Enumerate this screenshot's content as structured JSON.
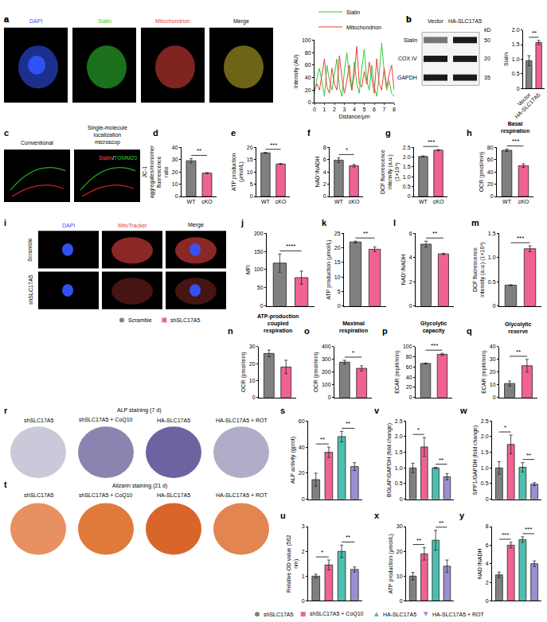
{
  "chart_data": [
    {
      "panel": "a",
      "type": "line",
      "xlabel": "Distance/μm",
      "ylabel": "Intensity (AU)",
      "xlim": [
        0,
        8
      ],
      "xticks": [
        0,
        1,
        2,
        3,
        4,
        5,
        6,
        7,
        8
      ],
      "ylim": [
        0,
        100
      ],
      "yticks": [
        0,
        20,
        40,
        60,
        80,
        100
      ],
      "legend": "top",
      "x": [
        0,
        0.25,
        0.5,
        0.75,
        1,
        1.25,
        1.5,
        1.75,
        2,
        2.25,
        2.5,
        2.75,
        3,
        3.25,
        3.5,
        3.75,
        4,
        4.25,
        4.5,
        4.75,
        5,
        5.25,
        5.5,
        5.75,
        6,
        6.25,
        6.5,
        6.75,
        7,
        7.25,
        7.5,
        7.75,
        8
      ],
      "series": [
        {
          "name": "Sialin",
          "color": "#33cc33",
          "values": [
            15,
            40,
            55,
            30,
            10,
            60,
            35,
            20,
            45,
            70,
            25,
            10,
            50,
            80,
            40,
            20,
            65,
            30,
            15,
            55,
            85,
            35,
            20,
            60,
            25,
            10,
            45,
            95,
            50,
            20,
            35,
            15,
            10
          ]
        },
        {
          "name": "Mitochondrion",
          "color": "#e8413c",
          "values": [
            20,
            30,
            20,
            45,
            70,
            25,
            15,
            55,
            30,
            20,
            75,
            40,
            15,
            35,
            60,
            20,
            45,
            90,
            30,
            25,
            50,
            30,
            65,
            40,
            15,
            70,
            30,
            20,
            55,
            25,
            45,
            60,
            20
          ]
        }
      ]
    },
    {
      "panel": "b",
      "type": "bar",
      "categories": [
        "Vector",
        "HA-SLC17A5"
      ],
      "values": [
        0.95,
        1.57
      ],
      "errors": [
        0.17,
        0.07
      ],
      "colors": [
        "#808080",
        "#f06292"
      ],
      "ylabel": "Sialin",
      "ylim": [
        0,
        2
      ],
      "yticks": [
        0,
        0.5,
        {
          "value": 1,
          "label": "1.0"
        },
        1.5,
        {
          "value": 2,
          "label": "2.0"
        }
      ],
      "annotations": [
        {
          "text": "**",
          "between": [
            0,
            1
          ]
        }
      ]
    },
    {
      "panel": "d",
      "type": "bar",
      "categories": [
        "WT",
        "cKO"
      ],
      "values": [
        29,
        19
      ],
      "errors": [
        1.8,
        0.4
      ],
      "colors": [
        "#808080",
        "#f06292"
      ],
      "ylabel": "JC-1 aggregates/monomer fluorescence ratio",
      "ylim": [
        0,
        40
      ],
      "yticks": [
        0,
        10,
        20,
        30,
        40
      ],
      "annotations": [
        {
          "text": "**",
          "between": [
            0,
            1
          ]
        }
      ]
    },
    {
      "panel": "e",
      "type": "bar",
      "categories": [
        "WT",
        "cKO"
      ],
      "values": [
        17.7,
        13.2
      ],
      "errors": [
        0.2,
        0.2
      ],
      "colors": [
        "#808080",
        "#f06292"
      ],
      "ylabel": "ATP production (μmol/L)",
      "ylim": [
        0,
        20
      ],
      "yticks": [
        0,
        5,
        10,
        15,
        20
      ],
      "annotations": [
        {
          "text": "***",
          "between": [
            0,
            1
          ]
        }
      ]
    },
    {
      "panel": "f",
      "type": "bar",
      "categories": [
        "WT",
        "cKO"
      ],
      "values": [
        5.9,
        5.0
      ],
      "errors": [
        0.4,
        0.2
      ],
      "colors": [
        "#808080",
        "#f06292"
      ],
      "ylabel": "NAD⁺/NADH",
      "ylim": [
        0,
        8
      ],
      "yticks": [
        0,
        2,
        4,
        6,
        8
      ],
      "annotations": [
        {
          "text": "*",
          "between": [
            0,
            1
          ]
        }
      ]
    },
    {
      "panel": "g",
      "type": "bar",
      "categories": [
        "WT",
        "cKO"
      ],
      "values": [
        2.03,
        2.35
      ],
      "errors": [
        0.03,
        0.03
      ],
      "colors": [
        "#808080",
        "#f06292"
      ],
      "ylabel": "DCF fluorescence intensity (a.u.) (1×10⁴)",
      "ylim": [
        0,
        2.5
      ],
      "yticks": [
        0,
        0.5,
        {
          "value": 1,
          "label": "1.0"
        },
        1.5,
        {
          "value": 2,
          "label": "2.0"
        },
        2.5
      ],
      "annotations": [
        {
          "text": "***",
          "between": [
            0,
            1
          ]
        }
      ]
    },
    {
      "panel": "h",
      "type": "bar",
      "title": "Basal respiration",
      "categories": [
        "WT",
        "cKO"
      ],
      "values": [
        75,
        50
      ],
      "errors": [
        2,
        3
      ],
      "colors": [
        "#808080",
        "#f06292"
      ],
      "ylabel": "OCR (pmol/min)",
      "ylim": [
        0,
        80
      ],
      "yticks": [
        0,
        20,
        40,
        60,
        80
      ],
      "annotations": [
        {
          "text": "***",
          "between": [
            0,
            1
          ]
        }
      ]
    },
    {
      "panel": "j",
      "type": "bar",
      "tick_labels": "y",
      "categories": [
        "Scramble",
        "shSLC17A5"
      ],
      "values": [
        118,
        78
      ],
      "errors": [
        25,
        18
      ],
      "colors": [
        "#808080",
        "#f06292"
      ],
      "ylabel": "MFI",
      "ylim": [
        0,
        200
      ],
      "yticks": [
        0,
        50,
        100,
        150,
        200
      ],
      "annotations": [
        {
          "text": "****",
          "between": [
            0,
            1
          ]
        }
      ]
    },
    {
      "panel": "k",
      "type": "bar",
      "tick_labels": "y",
      "categories": [
        "Scramble",
        "shSLC17A5"
      ],
      "values": [
        22,
        19.5
      ],
      "errors": [
        0.3,
        0.8
      ],
      "colors": [
        "#808080",
        "#f06292"
      ],
      "ylabel": "ATP production (μmol/L)",
      "ylim": [
        0,
        25
      ],
      "yticks": [
        0,
        5,
        10,
        15,
        20,
        25
      ],
      "annotations": [
        {
          "text": "**",
          "between": [
            0,
            1
          ]
        }
      ]
    },
    {
      "panel": "l",
      "type": "bar",
      "tick_labels": "y",
      "categories": [
        "Scramble",
        "shSLC17A5"
      ],
      "values": [
        5.1,
        4.3
      ],
      "errors": [
        0.25,
        0.05
      ],
      "colors": [
        "#808080",
        "#f06292"
      ],
      "ylabel": "NAD⁺/NADH",
      "ylim": [
        0,
        6
      ],
      "yticks": [
        0,
        2,
        4,
        6
      ],
      "annotations": [
        {
          "text": "**",
          "between": [
            0,
            1
          ]
        }
      ]
    },
    {
      "panel": "m",
      "type": "bar",
      "tick_labels": "y",
      "categories": [
        "Scramble",
        "shSLC17A5"
      ],
      "values": [
        0.43,
        1.18
      ],
      "errors": [
        0.01,
        0.06
      ],
      "colors": [
        "#808080",
        "#f06292"
      ],
      "ylabel": "DCF fluorescence intensity (a.u.) (1×10⁴)",
      "ylim": [
        0,
        1.5
      ],
      "yticks": [
        0,
        0.5,
        {
          "value": 1,
          "label": "1.0"
        },
        1.5
      ],
      "annotations": [
        {
          "text": "***",
          "between": [
            0,
            1
          ]
        }
      ]
    },
    {
      "panel": "n",
      "type": "bar",
      "tick_labels": "y",
      "title": "ATP-production coupled respiration",
      "categories": [
        "Scramble",
        "shSLC17A5"
      ],
      "values": [
        26,
        18
      ],
      "errors": [
        2,
        4
      ],
      "colors": [
        "#808080",
        "#f06292"
      ],
      "ylabel": "OCR (pmol/min)",
      "ylim": [
        0,
        30
      ],
      "yticks": [
        0,
        10,
        20,
        30
      ]
    },
    {
      "panel": "o",
      "type": "bar",
      "tick_labels": "y",
      "title": "Maximal respiration",
      "categories": [
        "Scramble",
        "shSLC17A5"
      ],
      "values": [
        278,
        230
      ],
      "errors": [
        15,
        20
      ],
      "colors": [
        "#808080",
        "#f06292"
      ],
      "ylabel": "OCR (pmol/min)",
      "ylim": [
        0,
        400
      ],
      "yticks": [
        0,
        100,
        200,
        300,
        400
      ],
      "annotations": [
        {
          "text": "*",
          "between": [
            0,
            1
          ]
        }
      ]
    },
    {
      "panel": "p",
      "type": "bar",
      "tick_labels": "y",
      "title": "Glycolytic capacity",
      "categories": [
        "Scramble",
        "shSLC17A5"
      ],
      "values": [
        67,
        85
      ],
      "errors": [
        1,
        2
      ],
      "colors": [
        "#808080",
        "#f06292"
      ],
      "ylabel": "ECAR (mpH/min)",
      "ylim": [
        0,
        100
      ],
      "yticks": [
        0,
        20,
        40,
        60,
        80,
        100
      ],
      "annotations": [
        {
          "text": "***",
          "between": [
            0,
            1
          ]
        }
      ]
    },
    {
      "panel": "q",
      "type": "bar",
      "tick_labels": "y",
      "title": "Glycolytic reserve",
      "categories": [
        "Scramble",
        "shSLC17A5"
      ],
      "values": [
        11,
        25
      ],
      "errors": [
        2,
        5
      ],
      "colors": [
        "#808080",
        "#f06292"
      ],
      "ylabel": "ECAR (mpH/min)",
      "ylim": [
        0,
        40
      ],
      "yticks": [
        0,
        10,
        20,
        30,
        40
      ],
      "annotations": [
        {
          "text": "**",
          "between": [
            0,
            1
          ]
        }
      ]
    },
    {
      "panel": "s",
      "type": "bar",
      "tick_labels": "y",
      "categories": [
        "shSLC17A5",
        "shSLC17A5 + CoQ10",
        "HA-SLC17A5",
        "HA-SLC17A5 + ROT"
      ],
      "values": [
        15,
        36,
        48,
        25
      ],
      "errors": [
        5,
        4,
        4,
        3
      ],
      "colors": [
        "#808080",
        "#f06292",
        "#4dbfb0",
        "#9b8fd1"
      ],
      "ylabel": "ALP activity (gprot)",
      "ylim": [
        0,
        60
      ],
      "yticks": [
        0,
        20,
        40,
        60
      ],
      "annotations": [
        {
          "text": "**",
          "between": [
            0,
            1
          ]
        },
        {
          "text": "**",
          "between": [
            2,
            3
          ]
        }
      ]
    },
    {
      "panel": "v",
      "type": "bar",
      "tick_labels": "y",
      "categories": [
        "shSLC17A5",
        "shSLC17A5 + CoQ10",
        "HA-SLC17A5",
        "HA-SLC17A5 + ROT"
      ],
      "values": [
        1.0,
        1.67,
        1.0,
        0.72
      ],
      "errors": [
        0.15,
        0.3,
        0.02,
        0.1
      ],
      "colors": [
        "#808080",
        "#f06292",
        "#4dbfb0",
        "#9b8fd1"
      ],
      "ylabel": "BGLAP/GAPDH (fold change)",
      "ylim": [
        0,
        2.5
      ],
      "yticks": [
        0,
        0.5,
        {
          "value": 1,
          "label": "1.0"
        },
        1.5,
        {
          "value": 2,
          "label": "2.0"
        },
        2.5
      ],
      "annotations": [
        {
          "text": "*",
          "between": [
            0,
            1
          ]
        },
        {
          "text": "**",
          "between": [
            2,
            3
          ]
        }
      ]
    },
    {
      "panel": "w",
      "type": "bar",
      "tick_labels": "y",
      "categories": [
        "shSLC17A5",
        "shSLC17A5 + CoQ10",
        "HA-SLC17A5",
        "HA-SLC17A5 + ROT"
      ],
      "values": [
        1.0,
        1.75,
        1.02,
        0.48
      ],
      "errors": [
        0.2,
        0.3,
        0.15,
        0.05
      ],
      "colors": [
        "#808080",
        "#f06292",
        "#4dbfb0",
        "#9b8fd1"
      ],
      "ylabel": "SPP1/GAPDH (fold change)",
      "ylim": [
        0,
        2.5
      ],
      "yticks": [
        0,
        0.5,
        {
          "value": 1,
          "label": "1.0"
        },
        1.5,
        {
          "value": 2,
          "label": "2.0"
        },
        2.5
      ],
      "annotations": [
        {
          "text": "*",
          "between": [
            0,
            1
          ]
        },
        {
          "text": "**",
          "between": [
            2,
            3
          ]
        }
      ]
    },
    {
      "panel": "u",
      "type": "bar",
      "tick_labels": "y",
      "categories": [
        "shSLC17A5",
        "shSLC17A5 + CoQ10",
        "HA-SLC17A5",
        "HA-SLC17A5 + ROT"
      ],
      "values": [
        1.0,
        1.45,
        2.0,
        1.27
      ],
      "errors": [
        0.08,
        0.2,
        0.25,
        0.1
      ],
      "colors": [
        "#808080",
        "#f06292",
        "#4dbfb0",
        "#9b8fd1"
      ],
      "ylabel": "Relative OD value (562 nm)",
      "ylim": [
        0,
        3
      ],
      "yticks": [
        0,
        1,
        2,
        3
      ],
      "annotations": [
        {
          "text": "*",
          "between": [
            0,
            1
          ]
        },
        {
          "text": "**",
          "between": [
            2,
            3
          ]
        }
      ]
    },
    {
      "panel": "x",
      "type": "bar",
      "tick_labels": "y",
      "categories": [
        "shSLC17A5",
        "shSLC17A5 + CoQ10",
        "HA-SLC17A5",
        "HA-SLC17A5 + ROT"
      ],
      "values": [
        10,
        19,
        24.5,
        14
      ],
      "errors": [
        1.5,
        2.5,
        4,
        2.5
      ],
      "colors": [
        "#808080",
        "#f06292",
        "#4dbfb0",
        "#9b8fd1"
      ],
      "ylabel": "ATP production (μmol/L)",
      "ylim": [
        0,
        30
      ],
      "yticks": [
        0,
        10,
        20,
        30
      ],
      "annotations": [
        {
          "text": "**",
          "between": [
            0,
            1
          ]
        },
        {
          "text": "**",
          "between": [
            2,
            3
          ]
        }
      ]
    },
    {
      "panel": "y",
      "type": "bar",
      "tick_labels": "y",
      "categories": [
        "shSLC17A5",
        "shSLC17A5 + CoQ10",
        "HA-SLC17A5",
        "HA-SLC17A5 + ROT"
      ],
      "values": [
        2.8,
        6.0,
        6.6,
        4.0
      ],
      "errors": [
        0.3,
        0.3,
        0.3,
        0.3
      ],
      "colors": [
        "#808080",
        "#f06292",
        "#4dbfb0",
        "#9b8fd1"
      ],
      "ylabel": "NAD⁺/NADH",
      "ylim": [
        0,
        8
      ],
      "yticks": [
        0,
        2,
        4,
        6,
        8
      ],
      "annotations": [
        {
          "text": "***",
          "between": [
            0,
            1
          ]
        },
        {
          "text": "***",
          "between": [
            2,
            3
          ]
        }
      ]
    }
  ],
  "image_panels": [
    {
      "panel": "a",
      "images": [
        {
          "label": "DAPI",
          "color": "#3355ff"
        },
        {
          "label": "Sialin",
          "color": "#33cc33"
        },
        {
          "label": "Mitochondrion",
          "color": "#e8413c"
        },
        {
          "label": "Merge",
          "color": "#000000"
        }
      ]
    },
    {
      "panel": "b",
      "blot": {
        "columns": [
          "Vector",
          "HA-SLC17A5"
        ],
        "rows": [
          "Sialin",
          "COX IV",
          "GAPDH"
        ],
        "unit": "kD",
        "markers": [
          "50",
          "20",
          "35"
        ]
      }
    },
    {
      "panel": "c",
      "images": [
        {
          "label": "Conventional"
        },
        {
          "label": "Single-molecule localization microscop"
        }
      ],
      "overlay": [
        {
          "text": "Sialin",
          "color": "#ff4040"
        },
        {
          "text": "/",
          "color": "#ffffff"
        },
        {
          "text": "TOMM20",
          "color": "#33cc33"
        }
      ]
    },
    {
      "panel": "i",
      "columns": [
        {
          "label": "DAPI",
          "color": "#3355ff"
        },
        {
          "label": "MitoTracker",
          "color": "#e8413c"
        },
        {
          "label": "Merge",
          "color": "#000000"
        }
      ],
      "rows": [
        "Scramble",
        "shSLC17A5"
      ]
    },
    {
      "panel": "r",
      "title": "ALP staining (7 d)",
      "columns": [
        "shSLC17A5",
        "shSLC17A5 + CoQ10",
        "HA-SLC17A5",
        "HA-SLC17A5 + ROT"
      ]
    },
    {
      "panel": "t",
      "title": "Alizarin staining (21 d)",
      "columns": [
        "shSLC17A5",
        "shSLC17A5 + CoQ10",
        "HA-SLC17A5",
        "HA-SLC17A5 + ROT"
      ]
    }
  ],
  "legends": [
    {
      "items": [
        {
          "name": "Scramble",
          "color": "#808080",
          "marker": "circle"
        },
        {
          "name": "shSLC17A5",
          "color": "#f06292",
          "marker": "square"
        }
      ]
    },
    {
      "items": [
        {
          "name": "shSLC17A5",
          "color": "#808080",
          "marker": "circle"
        },
        {
          "name": "shSLC17A5 + CoQ10",
          "color": "#f06292",
          "marker": "square"
        },
        {
          "name": "HA-SLC17A5",
          "color": "#4dbfb0",
          "marker": "triangle-up"
        },
        {
          "name": "HA-SLC17A5 + ROT",
          "color": "#9b8fd1",
          "marker": "triangle-down"
        }
      ]
    }
  ]
}
